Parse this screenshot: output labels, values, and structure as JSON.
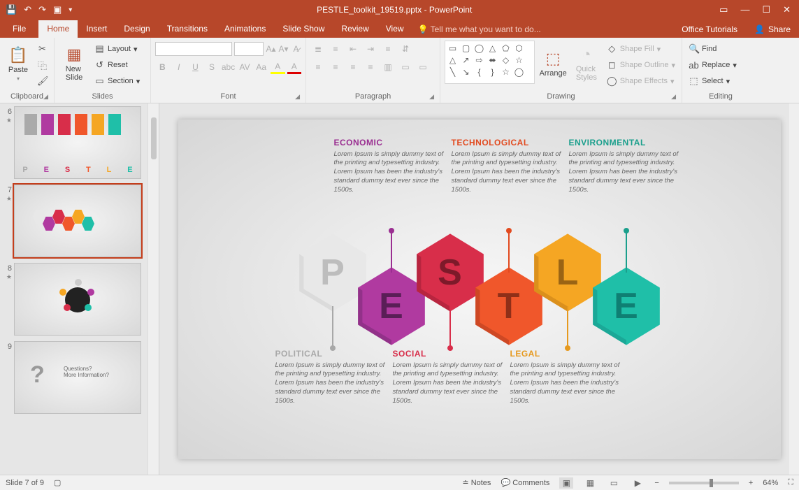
{
  "title": "PESTLE_toolkit_19519.pptx - PowerPoint",
  "tabs": {
    "file": "File",
    "home": "Home",
    "insert": "Insert",
    "design": "Design",
    "transitions": "Transitions",
    "animations": "Animations",
    "slideshow": "Slide Show",
    "review": "Review",
    "view": "View"
  },
  "tellme": "Tell me what you want to do...",
  "right": {
    "tutorials": "Office Tutorials",
    "share": "Share"
  },
  "groups": {
    "clipboard": "Clipboard",
    "slides": "Slides",
    "font": "Font",
    "paragraph": "Paragraph",
    "drawing": "Drawing",
    "editing": "Editing",
    "paste": "Paste",
    "newslide": "New\nSlide",
    "layout": "Layout",
    "reset": "Reset",
    "section": "Section",
    "arrange": "Arrange",
    "quick": "Quick\nStyles",
    "shapefill": "Shape Fill",
    "shapeoutline": "Shape Outline",
    "shapeeffects": "Shape Effects",
    "find": "Find",
    "replace": "Replace",
    "select": "Select"
  },
  "thumbs": [
    6,
    7,
    8,
    9
  ],
  "status": {
    "slide": "Slide 7 of 9",
    "notes": "Notes",
    "comments": "Comments",
    "zoom": "64%"
  },
  "pestle": {
    "letters": [
      "P",
      "E",
      "S",
      "T",
      "L",
      "E"
    ],
    "colors": {
      "P": "#e8e8e8",
      "E1": "#b03aa0",
      "S": "#d82e4a",
      "T": "#f0572b",
      "L": "#f5a623",
      "E2": "#1fbfa8",
      "Pd": "#cfcfcf",
      "E1d": "#7a2a76",
      "Sd": "#9e1f36",
      "Td": "#b23d1f",
      "Ld": "#c47e18",
      "E2d": "#179688"
    },
    "ltrcolor": {
      "P": "#bdbdbd",
      "E1": "#5a1e57",
      "S": "#7d1a2a",
      "T": "#8f2f18",
      "L": "#9a6414",
      "E2": "#0f7f73"
    },
    "items": [
      {
        "key": "political",
        "title": "POLITICAL",
        "color": "#a8a8a8",
        "pos": "bottom",
        "col": 0
      },
      {
        "key": "economic",
        "title": "ECONOMIC",
        "color": "#9a2e91",
        "pos": "top",
        "col": 1
      },
      {
        "key": "social",
        "title": "SOCIAL",
        "color": "#d82e4a",
        "pos": "bottom",
        "col": 2
      },
      {
        "key": "technological",
        "title": "TECHNOLOGICAL",
        "color": "#e24a1f",
        "pos": "top",
        "col": 3
      },
      {
        "key": "legal",
        "title": "LEGAL",
        "color": "#e6991e",
        "pos": "bottom",
        "col": 4
      },
      {
        "key": "environmental",
        "title": "ENVIRONMENTAL",
        "color": "#1a9f8c",
        "pos": "top",
        "col": 5
      }
    ],
    "body": "Lorem Ipsum is simply dummy text of the printing and typesetting industry. Lorem Ipsum has been the industry's standard dummy text ever since the 1500s."
  }
}
